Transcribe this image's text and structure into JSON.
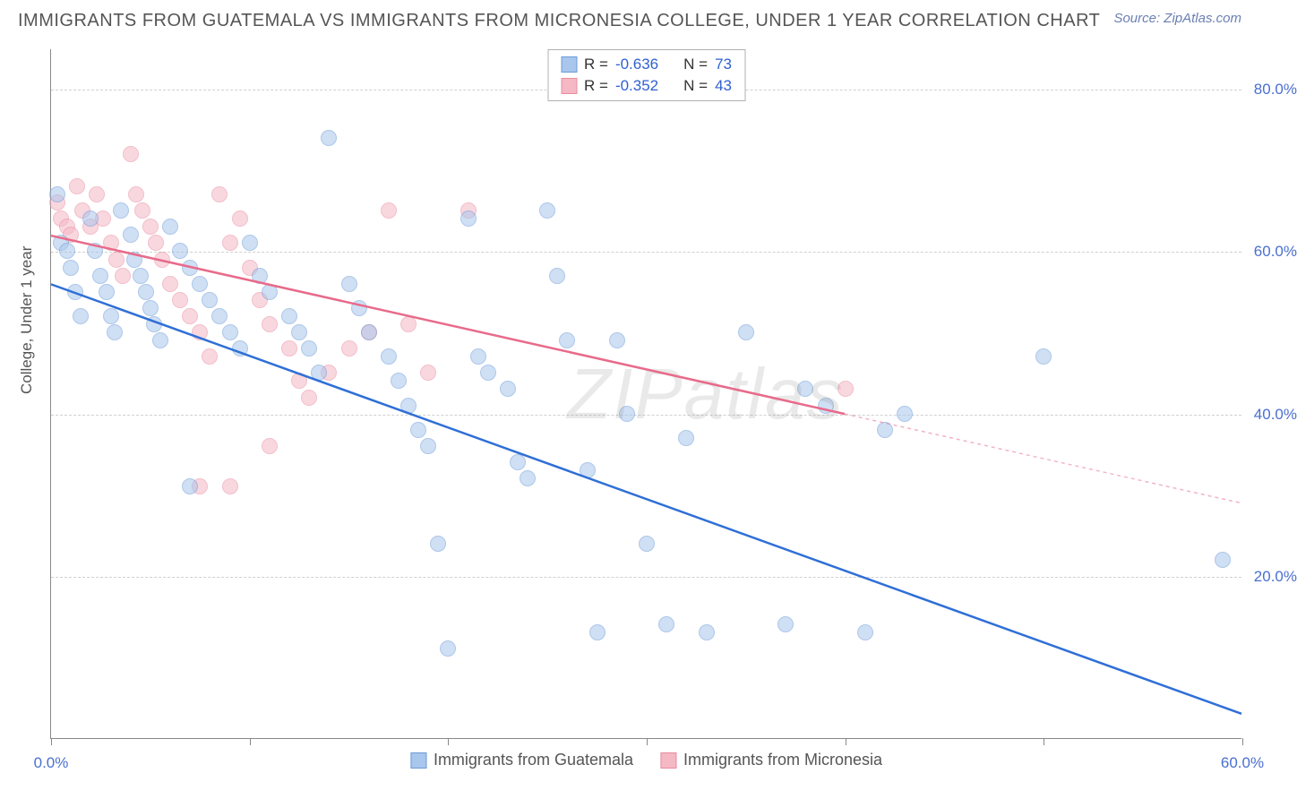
{
  "title": "IMMIGRANTS FROM GUATEMALA VS IMMIGRANTS FROM MICRONESIA COLLEGE, UNDER 1 YEAR CORRELATION CHART",
  "source": "Source: ZipAtlas.com",
  "y_axis_label": "College, Under 1 year",
  "watermark": "ZIPatlas",
  "colors": {
    "series1_fill": "#a9c6ec",
    "series1_stroke": "#6b9bd8",
    "series2_fill": "#f5b8c5",
    "series2_stroke": "#e88ca0",
    "line1": "#2f6fd6",
    "line2": "#e86a8a",
    "axis_text": "#4a6fd0",
    "grid": "#d0d0d0",
    "title_color": "#555555"
  },
  "x_domain": [
    0,
    60
  ],
  "y_domain": [
    0,
    85
  ],
  "x_ticks": [
    0,
    10,
    20,
    30,
    40,
    50,
    60
  ],
  "x_tick_labels": {
    "0": "0.0%",
    "60": "60.0%"
  },
  "y_ticks": [
    20,
    40,
    60,
    80
  ],
  "y_tick_labels": {
    "20": "20.0%",
    "40": "40.0%",
    "60": "60.0%",
    "80": "80.0%"
  },
  "stats": [
    {
      "swatch_fill": "#a9c6ec",
      "swatch_stroke": "#6b9bd8",
      "r": "-0.636",
      "n": "73"
    },
    {
      "swatch_fill": "#f5b8c5",
      "swatch_stroke": "#e88ca0",
      "r": "-0.352",
      "n": "43"
    }
  ],
  "legend_bottom": [
    {
      "swatch_fill": "#a9c6ec",
      "swatch_stroke": "#6b9bd8",
      "label": "Immigrants from Guatemala"
    },
    {
      "swatch_fill": "#f5b8c5",
      "swatch_stroke": "#e88ca0",
      "label": "Immigrants from Micronesia"
    }
  ],
  "trend_lines": [
    {
      "color": "#2f6fd6",
      "x1": 0,
      "y1": 56,
      "x2": 60,
      "y2": 3,
      "dash_from_x": null
    },
    {
      "color": "#e86a8a",
      "x1": 0,
      "y1": 62,
      "x2": 60,
      "y2": 29,
      "dash_from_x": 40
    }
  ],
  "point_radius": 9,
  "point_opacity": 0.55,
  "series1_points": [
    [
      0.3,
      67
    ],
    [
      0.5,
      61
    ],
    [
      0.8,
      60
    ],
    [
      1,
      58
    ],
    [
      1.2,
      55
    ],
    [
      1.5,
      52
    ],
    [
      2,
      64
    ],
    [
      2.2,
      60
    ],
    [
      2.5,
      57
    ],
    [
      2.8,
      55
    ],
    [
      3,
      52
    ],
    [
      3.2,
      50
    ],
    [
      3.5,
      65
    ],
    [
      4,
      62
    ],
    [
      4.2,
      59
    ],
    [
      4.5,
      57
    ],
    [
      4.8,
      55
    ],
    [
      5,
      53
    ],
    [
      5.2,
      51
    ],
    [
      5.5,
      49
    ],
    [
      6,
      63
    ],
    [
      6.5,
      60
    ],
    [
      7,
      58
    ],
    [
      7.5,
      56
    ],
    [
      8,
      54
    ],
    [
      8.5,
      52
    ],
    [
      9,
      50
    ],
    [
      9.5,
      48
    ],
    [
      10,
      61
    ],
    [
      10.5,
      57
    ],
    [
      11,
      55
    ],
    [
      12,
      52
    ],
    [
      12.5,
      50
    ],
    [
      13,
      48
    ],
    [
      13.5,
      45
    ],
    [
      14,
      74
    ],
    [
      15,
      56
    ],
    [
      15.5,
      53
    ],
    [
      16,
      50
    ],
    [
      17,
      47
    ],
    [
      17.5,
      44
    ],
    [
      18,
      41
    ],
    [
      18.5,
      38
    ],
    [
      19,
      36
    ],
    [
      19.5,
      24
    ],
    [
      20,
      11
    ],
    [
      21,
      64
    ],
    [
      21.5,
      47
    ],
    [
      22,
      45
    ],
    [
      23,
      43
    ],
    [
      23.5,
      34
    ],
    [
      24,
      32
    ],
    [
      25,
      65
    ],
    [
      25.5,
      57
    ],
    [
      26,
      49
    ],
    [
      27,
      33
    ],
    [
      27.5,
      13
    ],
    [
      28.5,
      49
    ],
    [
      29,
      40
    ],
    [
      30,
      24
    ],
    [
      31,
      14
    ],
    [
      32,
      37
    ],
    [
      33,
      13
    ],
    [
      35,
      50
    ],
    [
      37,
      14
    ],
    [
      38,
      43
    ],
    [
      39,
      41
    ],
    [
      41,
      13
    ],
    [
      42,
      38
    ],
    [
      43,
      40
    ],
    [
      50,
      47
    ],
    [
      59,
      22
    ],
    [
      7,
      31
    ]
  ],
  "series2_points": [
    [
      0.3,
      66
    ],
    [
      0.5,
      64
    ],
    [
      0.8,
      63
    ],
    [
      1,
      62
    ],
    [
      1.3,
      68
    ],
    [
      1.6,
      65
    ],
    [
      2,
      63
    ],
    [
      2.3,
      67
    ],
    [
      2.6,
      64
    ],
    [
      3,
      61
    ],
    [
      3.3,
      59
    ],
    [
      3.6,
      57
    ],
    [
      4,
      72
    ],
    [
      4.3,
      67
    ],
    [
      4.6,
      65
    ],
    [
      5,
      63
    ],
    [
      5.3,
      61
    ],
    [
      5.6,
      59
    ],
    [
      6,
      56
    ],
    [
      6.5,
      54
    ],
    [
      7,
      52
    ],
    [
      7.5,
      50
    ],
    [
      8,
      47
    ],
    [
      8.5,
      67
    ],
    [
      9,
      61
    ],
    [
      9.5,
      64
    ],
    [
      10,
      58
    ],
    [
      10.5,
      54
    ],
    [
      11,
      51
    ],
    [
      12,
      48
    ],
    [
      12.5,
      44
    ],
    [
      13,
      42
    ],
    [
      14,
      45
    ],
    [
      15,
      48
    ],
    [
      16,
      50
    ],
    [
      17,
      65
    ],
    [
      18,
      51
    ],
    [
      19,
      45
    ],
    [
      21,
      65
    ],
    [
      9,
      31
    ],
    [
      7.5,
      31
    ],
    [
      11,
      36
    ],
    [
      40,
      43
    ]
  ]
}
